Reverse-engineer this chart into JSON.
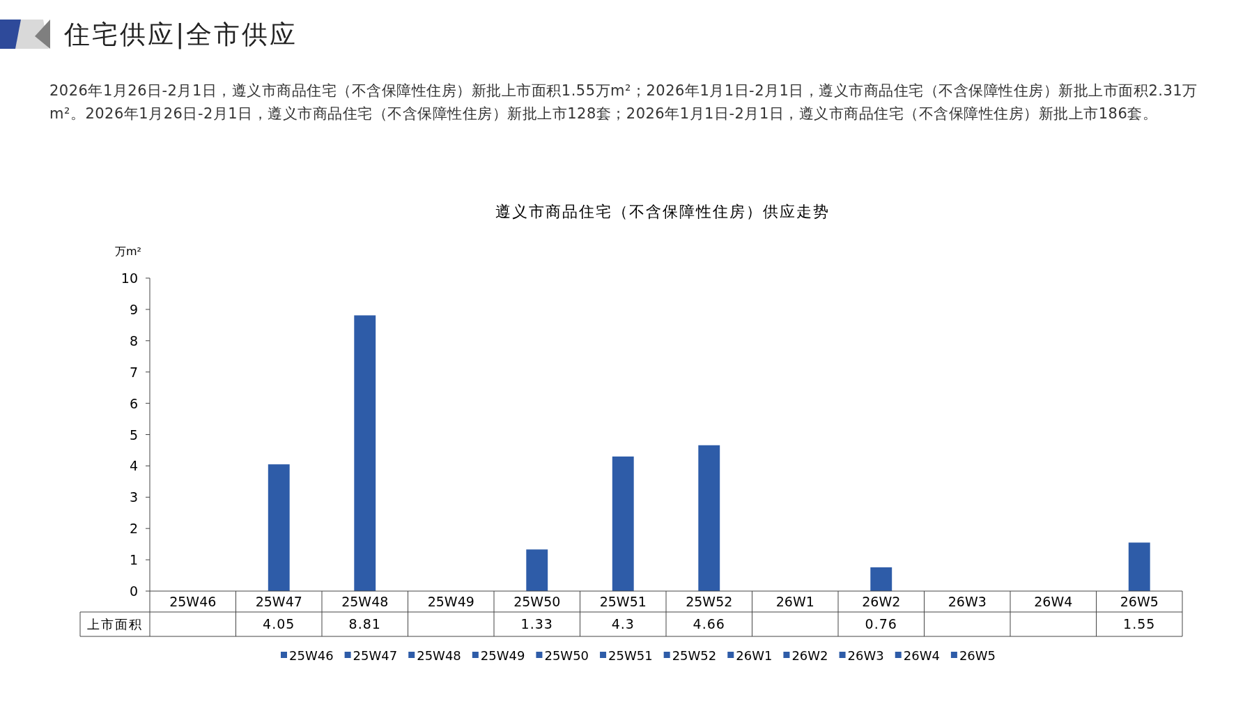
{
  "chart_data": {
    "type": "bar",
    "title": "遵义市商品住宅（不含保障性住房）供应走势",
    "ylabel": "万m²",
    "categories": [
      "25W46",
      "25W47",
      "25W48",
      "25W49",
      "25W50",
      "25W51",
      "25W52",
      "26W1",
      "26W2",
      "26W3",
      "26W4",
      "26W5"
    ],
    "series": [
      {
        "name": "上市面积",
        "color": "#2e5ca8",
        "values": [
          null,
          4.05,
          8.81,
          null,
          1.33,
          4.3,
          4.66,
          null,
          0.76,
          null,
          null,
          1.55
        ]
      }
    ],
    "ylim": [
      0,
      10
    ],
    "yticks": [
      0,
      1,
      2,
      3,
      4,
      5,
      6,
      7,
      8,
      9,
      10
    ],
    "data_labels": true,
    "legend": "bottom",
    "grid": false,
    "annotations": [
      "住宅供应|全市供应",
      "2026年1月26日-2月1日，遵义市商品住宅（不含保障性住房）新批上市面积1.55万m²；2026年1月1日-2月1日，遵义市商品住宅（不含保障性住房）新批上市面积2.31万m²。2026年1月26日-2月1日，遵义市商品住宅（不含保障性住房）新批上市128套；2026年1月1日-2月1日，遵义市商品住宅（不含保障性住房）新批上市186套。"
    ]
  }
}
